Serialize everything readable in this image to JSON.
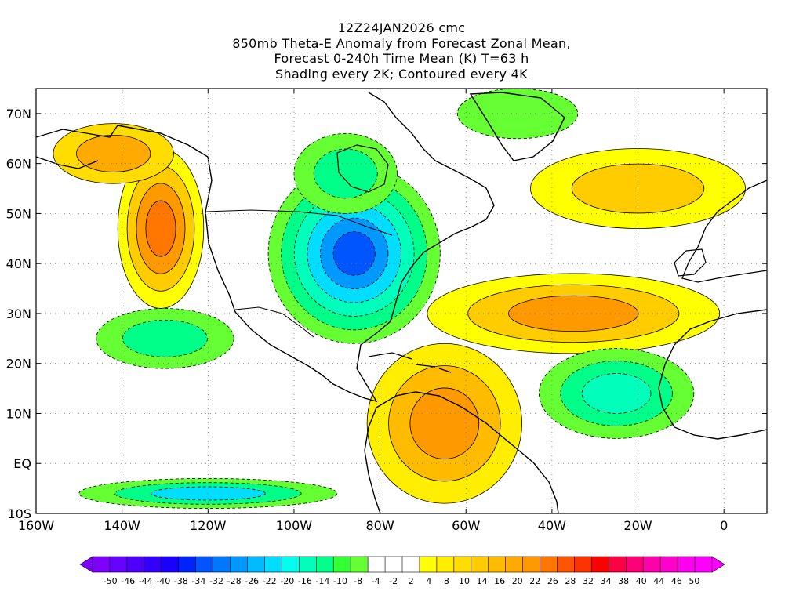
{
  "title": {
    "lines": [
      "12Z24JAN2026 cmc",
      "850mb Theta-E Anomaly from Forecast Zonal Mean,",
      "Forecast 0-240h Time Mean (K) T=63 h",
      "Shading every 2K; Contoured every 4K"
    ]
  },
  "axes": {
    "lat_range": [
      -10,
      75
    ],
    "lon_range": [
      -160,
      10
    ],
    "y_ticks": [
      {
        "value": 70,
        "label": "70N"
      },
      {
        "value": 60,
        "label": "60N"
      },
      {
        "value": 50,
        "label": "50N"
      },
      {
        "value": 40,
        "label": "40N"
      },
      {
        "value": 30,
        "label": "30N"
      },
      {
        "value": 20,
        "label": "20N"
      },
      {
        "value": 10,
        "label": "10N"
      },
      {
        "value": 0,
        "label": "EQ"
      },
      {
        "value": -10,
        "label": "10S"
      }
    ],
    "x_ticks": [
      {
        "value": -160,
        "label": "160W"
      },
      {
        "value": -140,
        "label": "140W"
      },
      {
        "value": -120,
        "label": "120W"
      },
      {
        "value": -100,
        "label": "100W"
      },
      {
        "value": -80,
        "label": "80W"
      },
      {
        "value": -60,
        "label": "60W"
      },
      {
        "value": -40,
        "label": "40W"
      },
      {
        "value": -20,
        "label": "20W"
      },
      {
        "value": 0,
        "label": "0"
      }
    ]
  },
  "colorbar": {
    "bins": [
      {
        "color": "#7f00ff"
      },
      {
        "color": "#6600ff"
      },
      {
        "color": "#4d00ff"
      },
      {
        "color": "#3300ff"
      },
      {
        "color": "#1a00ff"
      },
      {
        "color": "#0022ff"
      },
      {
        "color": "#0055ff"
      },
      {
        "color": "#0077ff"
      },
      {
        "color": "#0099ff"
      },
      {
        "color": "#00bbff"
      },
      {
        "color": "#00ddff"
      },
      {
        "color": "#00ffee"
      },
      {
        "color": "#00ffbb"
      },
      {
        "color": "#00ff88"
      },
      {
        "color": "#33ff33"
      },
      {
        "color": "#66ff33"
      },
      {
        "color": "#ffffff"
      },
      {
        "color": "#ffffff"
      },
      {
        "color": "#ffffff"
      },
      {
        "color": "#ffff00"
      },
      {
        "color": "#ffee00"
      },
      {
        "color": "#ffdd00"
      },
      {
        "color": "#ffcc00"
      },
      {
        "color": "#ffbb00"
      },
      {
        "color": "#ffaa00"
      },
      {
        "color": "#ff9900"
      },
      {
        "color": "#ff7700"
      },
      {
        "color": "#ff5500"
      },
      {
        "color": "#ff3300"
      },
      {
        "color": "#ff0000"
      },
      {
        "color": "#ff0044"
      },
      {
        "color": "#ff0077"
      },
      {
        "color": "#ff00aa"
      },
      {
        "color": "#ff00cc"
      },
      {
        "color": "#ff00ee"
      },
      {
        "color": "#ff00ff"
      }
    ],
    "labels": [
      "-50",
      "-46",
      "-44",
      "-40",
      "-38",
      "-34",
      "-32",
      "-28",
      "-26",
      "-22",
      "-20",
      "-16",
      "-14",
      "-10",
      "-8",
      "-4",
      "-2",
      "2",
      "4",
      "8",
      "10",
      "14",
      "16",
      "20",
      "22",
      "26",
      "28",
      "32",
      "34",
      "38",
      "40",
      "44",
      "46",
      "50"
    ]
  },
  "map": {
    "features": [
      {
        "name": "west-coast-warm-anomaly",
        "type": "warm",
        "lon": -131,
        "lat": 47,
        "rlon": 10,
        "rlat": 16,
        "levels": [
          {
            "color": "#ffff00"
          },
          {
            "color": "#ffcc00"
          },
          {
            "color": "#ff9900"
          },
          {
            "color": "#ff7700"
          }
        ]
      },
      {
        "name": "alaska-warm-anomaly",
        "type": "warm",
        "lon": -142,
        "lat": 62,
        "rlon": 14,
        "rlat": 6,
        "levels": [
          {
            "color": "#ffdd00"
          },
          {
            "color": "#ffaa00"
          }
        ]
      },
      {
        "name": "eastern-us-cold-anomaly",
        "type": "cold",
        "lon": -86,
        "lat": 42,
        "rlon": 20,
        "rlat": 18,
        "levels": [
          {
            "color": "#66ff33"
          },
          {
            "color": "#00ff88"
          },
          {
            "color": "#00ffbb"
          },
          {
            "color": "#00ddff"
          },
          {
            "color": "#0099ff"
          },
          {
            "color": "#0055ff"
          }
        ]
      },
      {
        "name": "atlantic-warm-plume",
        "type": "warm",
        "lon": -35,
        "lat": 30,
        "rlon": 34,
        "rlat": 8,
        "levels": [
          {
            "color": "#ffff00"
          },
          {
            "color": "#ffcc00"
          },
          {
            "color": "#ff9900"
          }
        ]
      },
      {
        "name": "north-atlantic-warm",
        "type": "warm",
        "lon": -20,
        "lat": 55,
        "rlon": 25,
        "rlat": 8,
        "levels": [
          {
            "color": "#ffff00"
          },
          {
            "color": "#ffcc00"
          }
        ]
      },
      {
        "name": "south-america-warm",
        "type": "warm",
        "lon": -65,
        "lat": 8,
        "rlon": 18,
        "rlat": 16,
        "levels": [
          {
            "color": "#ffee00"
          },
          {
            "color": "#ffbb00"
          },
          {
            "color": "#ff9900"
          }
        ]
      },
      {
        "name": "subtropical-atlantic-cool",
        "type": "cold",
        "lon": -25,
        "lat": 14,
        "rlon": 18,
        "rlat": 9,
        "levels": [
          {
            "color": "#66ff33"
          },
          {
            "color": "#00ff88"
          },
          {
            "color": "#00ffbb"
          }
        ]
      },
      {
        "name": "pacific-cool",
        "type": "cold",
        "lon": -130,
        "lat": 25,
        "rlon": 16,
        "rlat": 6,
        "levels": [
          {
            "color": "#66ff33"
          },
          {
            "color": "#00ff88"
          }
        ]
      },
      {
        "name": "equatorial-pacific-cool",
        "type": "cold",
        "lon": -120,
        "lat": -6,
        "rlon": 30,
        "rlat": 3,
        "levels": [
          {
            "color": "#66ff33"
          },
          {
            "color": "#00ff88"
          },
          {
            "color": "#00ddff"
          }
        ]
      },
      {
        "name": "greenland-cold",
        "type": "cold",
        "lon": -48,
        "lat": 70,
        "rlon": 14,
        "rlat": 5,
        "levels": [
          {
            "color": "#66ff33"
          }
        ]
      },
      {
        "name": "hudson-cold",
        "type": "cold",
        "lon": -88,
        "lat": 58,
        "rlon": 12,
        "rlat": 8,
        "levels": [
          {
            "color": "#66ff33"
          },
          {
            "color": "#00ff88"
          }
        ]
      }
    ]
  }
}
